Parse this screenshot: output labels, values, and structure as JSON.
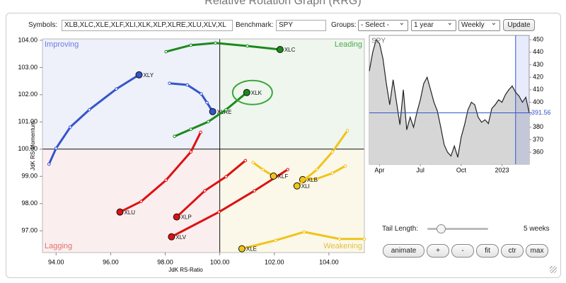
{
  "header": {
    "title": "Relative Rotation Graph (RRG)"
  },
  "controls": {
    "symbols_label": "Symbols:",
    "symbols": "XLB,XLC,XLE,XLF,XLI,XLK,XLP,XLRE,XLU,XLV,XL",
    "benchmark_label": "Benchmark:",
    "benchmark": "SPY",
    "groups_label": "Groups:",
    "groups": "- Select -",
    "period": "1 year",
    "interval": "Weekly",
    "update": "Update"
  },
  "chart_data": [
    {
      "type": "rrg",
      "x_label": "JdK RS-Ratio",
      "y_label": "JdK RS-Momentum",
      "xlim": [
        93.5,
        105.3
      ],
      "ylim": [
        96.2,
        104.05
      ],
      "xticks": [
        {
          "value": 94,
          "label": "94.00"
        },
        {
          "value": 96,
          "label": "96.00"
        },
        {
          "value": 98,
          "label": "98.00"
        },
        {
          "value": 100,
          "label": "100.00"
        },
        {
          "value": 102,
          "label": "102.00"
        },
        {
          "value": 104,
          "label": "104.00"
        }
      ],
      "yticks": [
        {
          "value": 97,
          "label": "97.00"
        },
        {
          "value": 98,
          "label": "98.00"
        },
        {
          "value": 99,
          "label": "99.00"
        },
        {
          "value": 100,
          "label": "100.00"
        },
        {
          "value": 101,
          "label": "101.00"
        },
        {
          "value": 102,
          "label": "102.00"
        },
        {
          "value": 103,
          "label": "103.00"
        },
        {
          "value": 104,
          "label": "104.00"
        }
      ],
      "quadrants": [
        {
          "name": "Improving",
          "color": "#6a7de0",
          "background": "#eef0fa"
        },
        {
          "name": "Leading",
          "color": "#4caa4c",
          "background": "#eef6ee"
        },
        {
          "name": "Lagging",
          "color": "#e07070",
          "background": "#fbeeee"
        },
        {
          "name": "Weakening",
          "color": "#e0c040",
          "background": "#fbf8ea"
        }
      ],
      "series": [
        {
          "name": "XLY",
          "color": "#3355cc",
          "x": [
            93.74,
            94.0,
            94.52,
            95.22,
            96.21,
            97.04
          ],
          "y": [
            99.45,
            100.03,
            100.81,
            101.45,
            102.21,
            102.73
          ]
        },
        {
          "name": "XLRE",
          "color": "#3355cc",
          "x": [
            98.16,
            98.81,
            99.32,
            99.53,
            99.74
          ],
          "y": [
            102.42,
            102.36,
            102.03,
            101.71,
            101.38
          ]
        },
        {
          "name": "XLC",
          "color": "#1a8a1a",
          "x": [
            98.03,
            98.94,
            99.84,
            101.01,
            102.21
          ],
          "y": [
            103.58,
            103.82,
            103.9,
            103.79,
            103.66
          ]
        },
        {
          "name": "XLK",
          "color": "#1a8a1a",
          "x": [
            98.34,
            98.94,
            99.58,
            100.23,
            100.99
          ],
          "y": [
            100.47,
            100.73,
            101.01,
            101.45,
            102.08
          ]
        },
        {
          "name": "XLU",
          "color": "#dd1111",
          "x": [
            99.3,
            98.94,
            98.03,
            97.12,
            96.34
          ],
          "y": [
            100.62,
            99.9,
            98.86,
            98.08,
            97.69
          ]
        },
        {
          "name": "XLP",
          "color": "#dd1111",
          "x": [
            100.94,
            100.23,
            99.45,
            98.42
          ],
          "y": [
            99.58,
            98.99,
            98.47,
            97.51
          ]
        },
        {
          "name": "XLV",
          "color": "#dd1111",
          "x": [
            102.49,
            101.27,
            99.97,
            98.23
          ],
          "y": [
            99.25,
            98.47,
            97.69,
            96.78
          ]
        },
        {
          "name": "XLF",
          "color": "#f0c419",
          "x": [
            101.22,
            101.58,
            101.97
          ],
          "y": [
            99.51,
            99.25,
            99.01
          ]
        },
        {
          "name": "XLB",
          "color": "#f0c419",
          "x": [
            104.6,
            104.13,
            103.56,
            103.04
          ],
          "y": [
            99.38,
            99.12,
            98.91,
            98.88
          ]
        },
        {
          "name": "XLI",
          "color": "#f0c419",
          "x": [
            104.68,
            104.13,
            103.56,
            102.83
          ],
          "y": [
            100.68,
            99.9,
            99.25,
            98.65
          ]
        },
        {
          "name": "XLE",
          "color": "#f0c419",
          "x": [
            105.3,
            104.39,
            103.09,
            102.05,
            100.81
          ],
          "y": [
            96.7,
            96.7,
            96.96,
            96.65,
            96.34
          ]
        }
      ],
      "highlight": "XLK"
    },
    {
      "type": "area",
      "title": "SPY",
      "color": "#222222",
      "fill": "#d6d6d6",
      "categories": [
        null,
        null,
        null,
        "Apr",
        null,
        null,
        null,
        null,
        null,
        null,
        null,
        null,
        null,
        null,
        null,
        "Jul",
        null,
        null,
        null,
        null,
        null,
        null,
        null,
        null,
        null,
        null,
        null,
        "Oct",
        null,
        null,
        null,
        null,
        null,
        null,
        null,
        null,
        null,
        null,
        null,
        "2023",
        null,
        null,
        null,
        null,
        null,
        null,
        null,
        null
      ],
      "values": [
        425,
        440,
        450,
        447,
        435,
        415,
        398,
        418,
        400,
        382,
        410,
        378,
        388,
        380,
        392,
        402,
        415,
        420,
        410,
        400,
        393,
        380,
        366,
        360,
        357,
        365,
        356,
        372,
        382,
        394,
        400,
        398,
        388,
        384,
        386,
        383,
        395,
        398,
        402,
        400,
        406,
        410,
        413,
        408,
        405,
        400,
        404,
        391.56
      ],
      "ylim": [
        350.5,
        453.5
      ],
      "yticks": [
        360,
        370,
        380,
        390,
        400,
        410,
        420,
        430,
        440,
        450
      ]
    }
  ],
  "tail": {
    "label": "Tail Length:",
    "value": "5 weeks"
  },
  "buttons": [
    "animate",
    "+",
    "-",
    "fit",
    "ctr",
    "max"
  ]
}
